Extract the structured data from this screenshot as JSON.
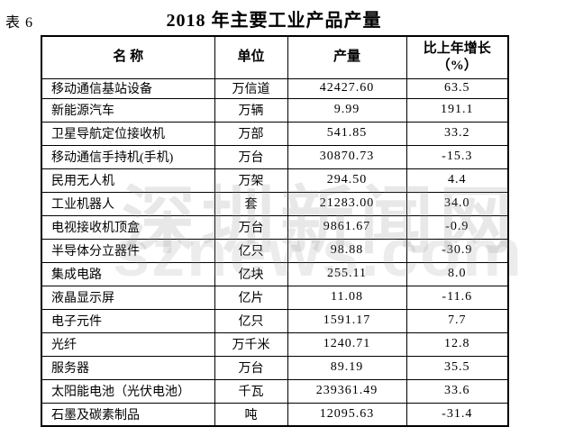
{
  "table_label": "表 6",
  "title": "2018 年主要工业产品产量",
  "watermark": {
    "site_name": "深圳新闻网",
    "site_domain": "sznews.com"
  },
  "table": {
    "columns": {
      "name": "名    称",
      "unit": "单位",
      "output": "产量",
      "growth_line1": "比上年增长",
      "growth_line2": "（%）"
    },
    "rows": [
      {
        "name": "移动通信基站设备",
        "unit": "万信道",
        "output": "42427.60",
        "growth": "63.5"
      },
      {
        "name": "新能源汽车",
        "unit": "万辆",
        "output": "9.99",
        "growth": "191.1"
      },
      {
        "name": "卫星导航定位接收机",
        "unit": "万部",
        "output": "541.85",
        "growth": "33.2"
      },
      {
        "name": "移动通信手持机(手机)",
        "unit": "万台",
        "output": "30870.73",
        "growth": "-15.3"
      },
      {
        "name": "民用无人机",
        "unit": "万架",
        "output": "294.50",
        "growth": "4.4"
      },
      {
        "name": "工业机器人",
        "unit": "套",
        "output": "21283.00",
        "growth": "34.0"
      },
      {
        "name": "电视接收机顶盒",
        "unit": "万台",
        "output": "9861.67",
        "growth": "-0.9"
      },
      {
        "name": "半导体分立器件",
        "unit": "亿只",
        "output": "98.88",
        "growth": "-30.9"
      },
      {
        "name": "集成电路",
        "unit": "亿块",
        "output": "255.11",
        "growth": "8.0"
      },
      {
        "name": "液晶显示屏",
        "unit": "亿片",
        "output": "11.08",
        "growth": "-11.6"
      },
      {
        "name": "电子元件",
        "unit": "亿只",
        "output": "1591.17",
        "growth": "7.7"
      },
      {
        "name": "光纤",
        "unit": "万千米",
        "output": "1240.71",
        "growth": "12.8"
      },
      {
        "name": "服务器",
        "unit": "万台",
        "output": "89.19",
        "growth": "35.5"
      },
      {
        "name": "太阳能电池（光伏电池）",
        "unit": "千瓦",
        "output": "239361.49",
        "growth": "33.6"
      },
      {
        "name": "石墨及碳素制品",
        "unit": "吨",
        "output": "12095.63",
        "growth": "-31.4"
      }
    ]
  }
}
